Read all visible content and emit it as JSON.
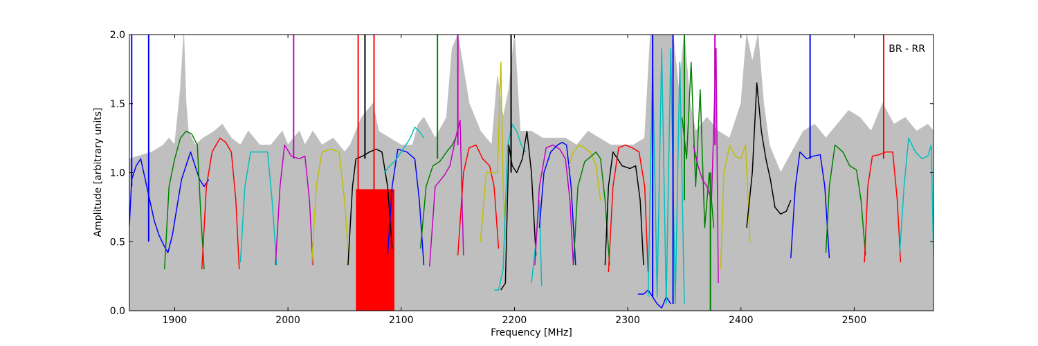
{
  "chart_data": {
    "type": "line",
    "title": "",
    "xlabel": "Frequency [MHz]",
    "ylabel": "Amplitude [arbitrary units]",
    "xlim": [
      1860,
      2570
    ],
    "ylim": [
      0.0,
      2.0
    ],
    "xticks": [
      1900,
      2000,
      2100,
      2200,
      2300,
      2400,
      2500
    ],
    "xtick_labels": [
      "1900",
      "2000",
      "2100",
      "2200",
      "2300",
      "2400",
      "2500"
    ],
    "yticks": [
      0.0,
      0.5,
      1.0,
      1.5,
      2.0
    ],
    "ytick_labels": [
      "0.0",
      "0.5",
      "1.0",
      "1.5",
      "2.0"
    ],
    "grid": false,
    "annotation": "BR - RR",
    "background_envelope": {
      "color": "#bfbfbf",
      "x": [
        1860,
        1880,
        1890,
        1895,
        1900,
        1905,
        1908,
        1910,
        1912,
        1915,
        1918,
        1925,
        1935,
        1942,
        1950,
        1958,
        1965,
        1975,
        1985,
        1995,
        2000,
        2005,
        2010,
        2015,
        2022,
        2030,
        2040,
        2050,
        2055,
        2065,
        2075,
        2080,
        2090,
        2100,
        2110,
        2115,
        2120,
        2130,
        2140,
        2145,
        2150,
        2160,
        2170,
        2180,
        2185,
        2190,
        2195,
        2200,
        2205,
        2215,
        2225,
        2235,
        2245,
        2255,
        2265,
        2275,
        2285,
        2295,
        2305,
        2315,
        2320,
        2325,
        2330,
        2335,
        2340,
        2345,
        2350,
        2355,
        2360,
        2370,
        2380,
        2390,
        2400,
        2405,
        2410,
        2415,
        2420,
        2425,
        2435,
        2445,
        2455,
        2465,
        2475,
        2485,
        2495,
        2505,
        2515,
        2525,
        2535,
        2545,
        2555,
        2565,
        2570
      ],
      "y": [
        1.1,
        1.15,
        1.2,
        1.25,
        1.2,
        1.6,
        2.0,
        1.5,
        1.3,
        1.25,
        1.2,
        1.25,
        1.3,
        1.35,
        1.25,
        1.2,
        1.3,
        1.2,
        1.2,
        1.3,
        1.2,
        1.25,
        1.3,
        1.2,
        1.3,
        1.2,
        1.25,
        1.15,
        1.2,
        1.4,
        1.5,
        1.3,
        1.25,
        1.2,
        1.2,
        1.35,
        1.4,
        1.25,
        1.4,
        1.9,
        2.0,
        1.5,
        1.3,
        1.2,
        1.7,
        1.4,
        1.6,
        2.0,
        1.3,
        1.3,
        1.25,
        1.25,
        1.25,
        1.2,
        1.3,
        1.25,
        1.2,
        1.2,
        1.2,
        1.25,
        2.0,
        2.0,
        2.0,
        2.0,
        2.0,
        1.6,
        2.0,
        1.5,
        1.3,
        1.4,
        1.3,
        1.25,
        1.5,
        2.0,
        1.8,
        2.0,
        1.5,
        1.2,
        1.0,
        1.15,
        1.3,
        1.35,
        1.25,
        1.35,
        1.45,
        1.4,
        1.3,
        1.5,
        1.35,
        1.4,
        1.3,
        1.35,
        1.3
      ]
    },
    "series": [
      {
        "color": "#0000ff",
        "x": [
          1860,
          1862,
          1866,
          1870,
          1874,
          1878,
          1882,
          1886,
          1890,
          1894,
          1898,
          1902,
          1906,
          1910,
          1914,
          1918,
          1922,
          1926,
          1930
        ],
        "y": [
          0.62,
          0.95,
          1.05,
          1.1,
          0.95,
          0.8,
          0.65,
          0.55,
          0.48,
          0.42,
          0.55,
          0.75,
          0.95,
          1.05,
          1.15,
          1.05,
          0.95,
          0.9,
          0.95
        ]
      },
      {
        "color": "#008000",
        "x": [
          1891,
          1895,
          1900,
          1905,
          1910,
          1915,
          1920,
          1923,
          1926
        ],
        "y": [
          0.3,
          0.9,
          1.1,
          1.25,
          1.3,
          1.28,
          1.2,
          0.7,
          0.3
        ]
      },
      {
        "color": "#ff0000",
        "x": [
          1924,
          1928,
          1933,
          1940,
          1945,
          1950,
          1954,
          1957
        ],
        "y": [
          0.3,
          0.9,
          1.15,
          1.25,
          1.22,
          1.15,
          0.8,
          0.3
        ]
      },
      {
        "color": "#00bfbf",
        "x": [
          1958,
          1962,
          1967,
          1975,
          1982,
          1986,
          1990
        ],
        "y": [
          0.35,
          0.9,
          1.15,
          1.15,
          1.15,
          0.8,
          0.33
        ]
      },
      {
        "color": "#bf00bf",
        "x": [
          1989,
          1993,
          1997,
          2003,
          2010,
          2015,
          2019,
          2022
        ],
        "y": [
          0.33,
          0.9,
          1.2,
          1.12,
          1.1,
          1.12,
          0.8,
          0.33
        ]
      },
      {
        "color": "#bfbf00",
        "x": [
          2021,
          2025,
          2030,
          2038,
          2045,
          2050,
          2054
        ],
        "y": [
          0.33,
          0.9,
          1.15,
          1.17,
          1.15,
          0.8,
          0.33
        ]
      },
      {
        "color": "#000000",
        "x": [
          2053,
          2057,
          2060,
          2066,
          2072,
          2078,
          2083,
          2088,
          2092
        ],
        "y": [
          0.33,
          0.9,
          1.1,
          1.12,
          1.15,
          1.17,
          1.15,
          0.9,
          0.45
        ]
      },
      {
        "color": "#0000ff",
        "x": [
          2088,
          2092,
          2097,
          2105,
          2112,
          2116,
          2120
        ],
        "y": [
          0.4,
          0.9,
          1.17,
          1.15,
          1.1,
          0.8,
          0.33
        ]
      },
      {
        "color": "#00bfbf",
        "x": [
          2085,
          2090,
          2094,
          2100,
          2108,
          2112,
          2116,
          2120
        ],
        "y": [
          1.0,
          1.05,
          1.08,
          1.15,
          1.25,
          1.33,
          1.3,
          1.25
        ]
      },
      {
        "color": "#008000",
        "x": [
          2117,
          2122,
          2128,
          2134,
          2140,
          2145,
          2148
        ],
        "y": [
          0.45,
          0.9,
          1.05,
          1.08,
          1.15,
          1.2,
          1.25
        ]
      },
      {
        "color": "#bf00bf",
        "x": [
          2125,
          2130,
          2138,
          2143,
          2148,
          2152,
          2155
        ],
        "y": [
          0.32,
          0.9,
          0.98,
          1.05,
          1.25,
          1.38,
          0.4
        ]
      },
      {
        "color": "#ff0000",
        "x": [
          2150,
          2155,
          2160,
          2166,
          2172,
          2178,
          2182,
          2186
        ],
        "y": [
          0.4,
          1.0,
          1.18,
          1.2,
          1.1,
          1.05,
          0.9,
          0.45
        ]
      },
      {
        "color": "#bfbf00",
        "x": [
          2170,
          2175,
          2180,
          2185,
          2188,
          2190,
          2193
        ],
        "y": [
          0.5,
          1.0,
          1.0,
          1.0,
          1.8,
          0.9,
          0.4
        ]
      },
      {
        "color": "#00bfbf",
        "x": [
          2182,
          2186,
          2190,
          2194,
          2198,
          2202,
          2206,
          2210
        ],
        "y": [
          0.15,
          0.15,
          0.3,
          1.2,
          1.35,
          1.3,
          1.2,
          1.15
        ]
      },
      {
        "color": "#000000",
        "x": [
          2188,
          2192,
          2195,
          2198,
          2202,
          2207,
          2211,
          2215,
          2219
        ],
        "y": [
          0.15,
          0.2,
          1.2,
          1.05,
          1.0,
          1.1,
          1.3,
          1.0,
          0.4
        ]
      },
      {
        "color": "#00bfbf",
        "x": [
          2215,
          2219,
          2222,
          2224
        ],
        "y": [
          0.2,
          0.5,
          0.8,
          0.18
        ]
      },
      {
        "color": "#bf00bf",
        "x": [
          2218,
          2222,
          2228,
          2234,
          2240,
          2245,
          2249,
          2252
        ],
        "y": [
          0.33,
          0.9,
          1.18,
          1.2,
          1.17,
          1.1,
          0.8,
          0.33
        ]
      },
      {
        "color": "#0000ff",
        "x": [
          2222,
          2226,
          2232,
          2238,
          2242,
          2246,
          2250,
          2254
        ],
        "y": [
          0.6,
          1.0,
          1.15,
          1.2,
          1.22,
          1.2,
          0.9,
          0.33
        ]
      },
      {
        "color": "#bfbf00",
        "x": [
          2248,
          2252,
          2257,
          2262,
          2267,
          2272,
          2276
        ],
        "y": [
          1.05,
          1.15,
          1.2,
          1.18,
          1.15,
          1.05,
          0.8
        ]
      },
      {
        "color": "#008000",
        "x": [
          2252,
          2256,
          2262,
          2268,
          2272,
          2276,
          2280,
          2284
        ],
        "y": [
          0.33,
          0.9,
          1.08,
          1.12,
          1.15,
          1.1,
          0.8,
          0.33
        ]
      },
      {
        "color": "#000000",
        "x": [
          2280,
          2283,
          2287,
          2295,
          2302,
          2307,
          2311,
          2314
        ],
        "y": [
          0.33,
          0.9,
          1.15,
          1.05,
          1.03,
          1.05,
          0.8,
          0.33
        ]
      },
      {
        "color": "#ff0000",
        "x": [
          2283,
          2287,
          2292,
          2298,
          2304,
          2310,
          2315,
          2318
        ],
        "y": [
          0.28,
          0.9,
          1.18,
          1.2,
          1.18,
          1.15,
          0.9,
          0.28
        ]
      },
      {
        "color": "#0000ff",
        "x": [
          2309,
          2314,
          2318,
          2322,
          2326,
          2330,
          2334,
          2338
        ],
        "y": [
          0.12,
          0.12,
          0.15,
          0.1,
          0.05,
          0.02,
          0.1,
          0.05
        ]
      },
      {
        "color": "#00bfbf",
        "x": [
          2318,
          2322,
          2326,
          2330,
          2334,
          2338,
          2342,
          2346,
          2350
        ],
        "y": [
          0.1,
          1.8,
          0.1,
          1.9,
          0.05,
          1.9,
          0.05,
          1.8,
          0.05
        ]
      },
      {
        "color": "#008000",
        "x": [
          2348,
          2352,
          2356,
          2360,
          2364,
          2368,
          2372,
          2376
        ],
        "y": [
          1.4,
          1.1,
          1.8,
          0.9,
          1.6,
          0.6,
          1.0,
          0.6
        ]
      },
      {
        "color": "#bf00bf",
        "x": [
          2358,
          2362,
          2366,
          2370,
          2374,
          2378,
          2380
        ],
        "y": [
          1.2,
          1.05,
          0.95,
          0.9,
          0.8,
          1.9,
          0.2
        ]
      },
      {
        "color": "#bfbf00",
        "x": [
          2382,
          2385,
          2390,
          2395,
          2400,
          2404,
          2408
        ],
        "y": [
          0.3,
          1.0,
          1.2,
          1.12,
          1.1,
          1.2,
          0.5
        ]
      },
      {
        "color": "#000000",
        "x": [
          2405,
          2410,
          2414,
          2418,
          2422,
          2426,
          2430,
          2435,
          2440,
          2444
        ],
        "y": [
          0.6,
          1.0,
          1.65,
          1.3,
          1.1,
          0.95,
          0.75,
          0.7,
          0.72,
          0.8
        ]
      },
      {
        "color": "#0000ff",
        "x": [
          2444,
          2448,
          2452,
          2458,
          2464,
          2470,
          2474,
          2478
        ],
        "y": [
          0.38,
          0.9,
          1.15,
          1.1,
          1.12,
          1.13,
          0.9,
          0.38
        ]
      },
      {
        "color": "#008000",
        "x": [
          2475,
          2478,
          2483,
          2490,
          2496,
          2502,
          2506,
          2510
        ],
        "y": [
          0.42,
          0.9,
          1.2,
          1.15,
          1.05,
          1.02,
          0.8,
          0.4
        ]
      },
      {
        "color": "#ff0000",
        "x": [
          2509,
          2512,
          2516,
          2522,
          2528,
          2534,
          2538,
          2541
        ],
        "y": [
          0.35,
          0.9,
          1.12,
          1.13,
          1.15,
          1.15,
          0.8,
          0.35
        ]
      },
      {
        "color": "#00bfbf",
        "x": [
          2540,
          2544,
          2548,
          2554,
          2560,
          2565,
          2568,
          2570
        ],
        "y": [
          0.4,
          0.9,
          1.25,
          1.15,
          1.1,
          1.12,
          1.2,
          0.4
        ]
      }
    ],
    "spikes": [
      {
        "color": "#0000ff",
        "x": 1877,
        "y0": 0.5,
        "y1": 2.0
      },
      {
        "color": "#0000ff",
        "x": 1862,
        "y0": 0.9,
        "y1": 2.0
      },
      {
        "color": "#bf00bf",
        "x": 2005,
        "y0": 1.1,
        "y1": 2.0
      },
      {
        "color": "#ff0000",
        "x": 2062,
        "y0": 0.0,
        "y1": 2.0
      },
      {
        "color": "#000000",
        "x": 2068,
        "y0": 1.1,
        "y1": 2.0
      },
      {
        "color": "#ff0000",
        "x": 2076,
        "y0": 0.0,
        "y1": 2.0
      },
      {
        "color": "#008000",
        "x": 2132,
        "y0": 1.1,
        "y1": 2.0
      },
      {
        "color": "#bf00bf",
        "x": 2150,
        "y0": 1.2,
        "y1": 2.0
      },
      {
        "color": "#000000",
        "x": 2197,
        "y0": 1.0,
        "y1": 2.0
      },
      {
        "color": "#0000ff",
        "x": 2322,
        "y0": 0.1,
        "y1": 2.0
      },
      {
        "color": "#0000ff",
        "x": 2340,
        "y0": 0.05,
        "y1": 2.0
      },
      {
        "color": "#008000",
        "x": 2350,
        "y0": 0.8,
        "y1": 2.0
      },
      {
        "color": "#008000",
        "x": 2373,
        "y0": 0.0,
        "y1": 1.0
      },
      {
        "color": "#bf00bf",
        "x": 2377,
        "y0": 1.2,
        "y1": 2.0
      },
      {
        "color": "#0000ff",
        "x": 2461,
        "y0": 1.1,
        "y1": 2.0
      },
      {
        "color": "#ff0000",
        "x": 2526,
        "y0": 1.1,
        "y1": 2.0
      }
    ],
    "filled_blocks": [
      {
        "color": "#ff0000",
        "x0": 2060,
        "x1": 2094,
        "y0": 0.0,
        "y1": 0.88
      }
    ]
  }
}
